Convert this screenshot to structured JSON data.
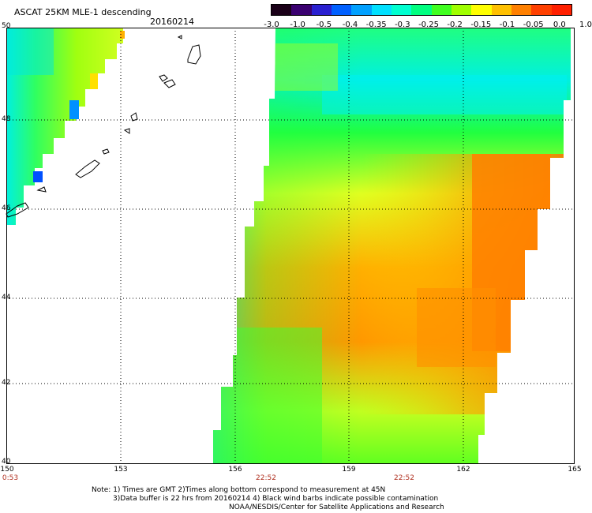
{
  "header": {
    "title": "ASCAT 25KM MLE-1 descending",
    "date": "20160214"
  },
  "colorbar": {
    "labels": [
      "-3.0",
      "-1.0",
      "-0.5",
      "-0.4",
      "-0.35",
      "-0.3",
      "-0.25",
      "-0.2",
      "-0.15",
      "-0.1",
      "-0.05",
      "0.0",
      "1.0"
    ],
    "colors": [
      "#1a0018",
      "#3a0070",
      "#2a20d0",
      "#0060ff",
      "#00a0ff",
      "#00e0ff",
      "#00ffd0",
      "#00ff80",
      "#40ff20",
      "#a0ff00",
      "#ffff00",
      "#ffc000",
      "#ff8000",
      "#ff4000",
      "#ff2000"
    ]
  },
  "map": {
    "lon_range": [
      150,
      165
    ],
    "lat_range": [
      40,
      50
    ],
    "lon_ticks": [
      "150",
      "153",
      "156",
      "159",
      "162",
      "165"
    ],
    "lat_ticks": [
      "50",
      "48",
      "46",
      "44",
      "42",
      "40"
    ],
    "times": [
      "0:53",
      "22:52",
      "22:52"
    ]
  },
  "notes": {
    "line1": "Note: 1) Times are GMT 2)Times along bottom correspond to measurement at 45N",
    "line2": "3)Data buffer is 22 hrs from 20160214 4) Black wind barbs indicate possible contamination",
    "line3": "NOAA/NESDIS/Center for Satellite Applications and Research"
  }
}
